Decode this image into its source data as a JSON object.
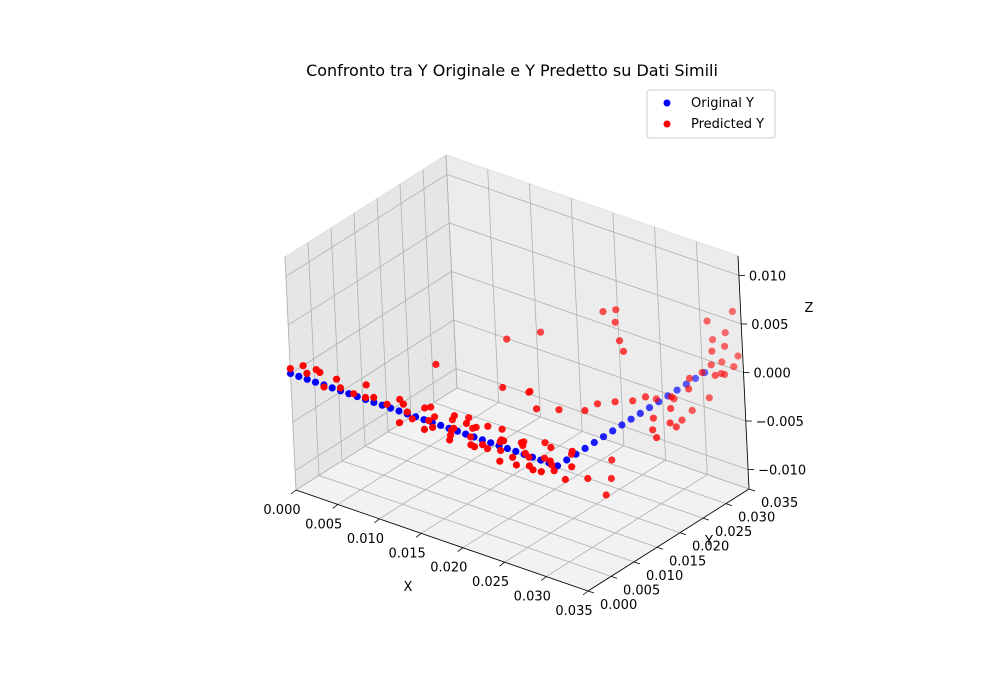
{
  "chart_data": {
    "type": "scatter",
    "projection": "3d",
    "title": "Confronto tra Y Originale e Y Predetto su Dati Simili",
    "xlabel": "X",
    "ylabel": "Y",
    "zlabel": "Z",
    "xlim": [
      0.0,
      0.035
    ],
    "ylim": [
      0.0,
      0.035
    ],
    "zlim": [
      -0.012,
      0.012
    ],
    "x_ticks": [
      "0.000",
      "0.005",
      "0.010",
      "0.015",
      "0.020",
      "0.025",
      "0.030",
      "0.035"
    ],
    "y_ticks": [
      "0.000",
      "0.005",
      "0.010",
      "0.015",
      "0.020",
      "0.025",
      "0.030",
      "0.035"
    ],
    "z_ticks": [
      "−0.010",
      "−0.005",
      "0.000",
      "0.005",
      "0.010"
    ],
    "grid": true,
    "legend_position": "top-right",
    "series": [
      {
        "name": "Original Y",
        "color": "#0000ff",
        "points": [
          [
            0.0,
            0.0,
            0.0
          ],
          [
            0.001,
            0.0,
            0.0
          ],
          [
            0.002,
            0.0,
            0.0
          ],
          [
            0.003,
            0.0,
            0.0
          ],
          [
            0.004,
            0.0,
            0.0
          ],
          [
            0.005,
            0.0,
            0.0
          ],
          [
            0.006,
            0.0,
            0.0
          ],
          [
            0.007,
            0.0,
            0.0
          ],
          [
            0.008,
            0.0,
            0.0
          ],
          [
            0.009,
            0.0,
            0.0
          ],
          [
            0.01,
            0.0,
            0.0
          ],
          [
            0.011,
            0.0,
            0.0
          ],
          [
            0.012,
            0.0,
            0.0
          ],
          [
            0.013,
            0.0,
            0.0
          ],
          [
            0.014,
            0.0,
            0.0
          ],
          [
            0.015,
            0.0,
            0.0
          ],
          [
            0.016,
            0.0,
            0.0
          ],
          [
            0.017,
            0.0,
            0.0
          ],
          [
            0.018,
            0.0,
            0.0
          ],
          [
            0.019,
            0.0,
            0.0
          ],
          [
            0.02,
            0.0,
            0.0
          ],
          [
            0.021,
            0.0,
            0.0
          ],
          [
            0.022,
            0.0,
            0.0
          ],
          [
            0.023,
            0.0,
            0.0
          ],
          [
            0.024,
            0.0,
            0.0
          ],
          [
            0.025,
            0.0,
            0.0
          ],
          [
            0.026,
            0.0,
            0.0
          ],
          [
            0.027,
            0.0,
            0.0
          ],
          [
            0.028,
            0.0,
            0.0
          ],
          [
            0.029,
            0.0,
            0.0
          ],
          [
            0.03,
            0.0,
            0.0
          ],
          [
            0.031,
            0.0,
            0.0
          ],
          [
            0.032,
            0.0,
            0.0
          ],
          [
            0.032,
            0.002,
            0.0
          ],
          [
            0.032,
            0.004,
            0.0
          ],
          [
            0.032,
            0.006,
            0.0
          ],
          [
            0.032,
            0.008,
            0.0
          ],
          [
            0.032,
            0.01,
            0.0
          ],
          [
            0.032,
            0.012,
            0.0
          ],
          [
            0.032,
            0.014,
            0.0
          ],
          [
            0.032,
            0.016,
            0.0
          ],
          [
            0.032,
            0.018,
            0.0
          ],
          [
            0.032,
            0.02,
            0.0
          ],
          [
            0.032,
            0.022,
            0.0
          ],
          [
            0.032,
            0.024,
            0.0
          ],
          [
            0.032,
            0.026,
            0.0
          ],
          [
            0.032,
            0.028,
            0.0
          ],
          [
            0.032,
            0.03,
            0.0
          ],
          [
            0.032,
            0.032,
            0.0
          ]
        ]
      },
      {
        "name": "Predicted Y",
        "color": "#ff0000",
        "points": [
          [
            0.0,
            0.0,
            0.0005
          ],
          [
            0.001,
            0.001,
            0.0008
          ],
          [
            0.002,
            0.0,
            0.0006
          ],
          [
            0.003,
            0.001,
            0.0007
          ],
          [
            0.002,
            0.002,
            0.0004
          ],
          [
            0.004,
            0.0,
            -0.0002
          ],
          [
            0.005,
            0.001,
            0.0006
          ],
          [
            0.006,
            0.0,
            0.0003
          ],
          [
            0.007,
            0.001,
            -0.0003
          ],
          [
            0.008,
            0.002,
            0.0006
          ],
          [
            0.009,
            0.0,
            0.0002
          ],
          [
            0.01,
            0.0,
            0.0005
          ],
          [
            0.011,
            0.001,
            -0.0002
          ],
          [
            0.012,
            0.002,
            0.0003
          ],
          [
            0.013,
            0.001,
            0.0004
          ],
          [
            0.014,
            0.0,
            0.0002
          ],
          [
            0.015,
            0.002,
            0.0003
          ],
          [
            0.016,
            0.001,
            -0.0004
          ],
          [
            0.017,
            0.0,
            -0.0005
          ],
          [
            0.018,
            0.003,
            0.0001
          ],
          [
            0.019,
            0.001,
            -0.0003
          ],
          [
            0.02,
            0.002,
            0.0002
          ],
          [
            0.021,
            0.001,
            -0.0006
          ],
          [
            0.022,
            0.003,
            0.0002
          ],
          [
            0.023,
            0.0,
            -0.0005
          ],
          [
            0.024,
            0.002,
            -0.0005
          ],
          [
            0.025,
            0.001,
            0.0002
          ],
          [
            0.026,
            0.003,
            -0.0003
          ],
          [
            0.027,
            0.002,
            -0.0008
          ],
          [
            0.028,
            0.001,
            -0.0006
          ],
          [
            0.029,
            0.004,
            -0.0002
          ],
          [
            0.03,
            0.002,
            -0.0007
          ],
          [
            0.031,
            0.005,
            -0.0003
          ],
          [
            0.032,
            0.003,
            -0.001
          ],
          [
            0.031,
            0.001,
            -0.0011
          ],
          [
            0.03,
            0.0,
            -0.0012
          ],
          [
            0.029,
            0.0,
            -0.0013
          ],
          [
            0.028,
            0.001,
            -0.0015
          ],
          [
            0.027,
            0.0,
            -0.0014
          ],
          [
            0.026,
            0.001,
            -0.0012
          ],
          [
            0.025,
            0.0,
            -0.0016
          ],
          [
            0.024,
            0.002,
            -0.0014
          ],
          [
            0.023,
            0.001,
            -0.0012
          ],
          [
            0.022,
            0.0,
            -0.001
          ],
          [
            0.021,
            0.001,
            -0.0014
          ],
          [
            0.019,
            0.0,
            -0.0012
          ],
          [
            0.018,
            0.002,
            -0.0016
          ],
          [
            0.016,
            0.0,
            -0.001
          ],
          [
            0.014,
            0.001,
            -0.0008
          ],
          [
            0.013,
            0.0,
            -0.0012
          ],
          [
            0.02,
            0.01,
            0.0015
          ],
          [
            0.022,
            0.012,
            0.001
          ],
          [
            0.024,
            0.01,
            0.0005
          ],
          [
            0.021,
            0.014,
            0.0002
          ],
          [
            0.025,
            0.013,
            -0.0002
          ],
          [
            0.027,
            0.015,
            -0.0003
          ],
          [
            0.028,
            0.016,
            0.0004
          ],
          [
            0.029,
            0.018,
            0.0003
          ],
          [
            0.03,
            0.02,
            0.0001
          ],
          [
            0.031,
            0.021,
            0.0005
          ],
          [
            0.033,
            0.019,
            -0.0005
          ],
          [
            0.034,
            0.017,
            -0.0008
          ],
          [
            0.035,
            0.016,
            -0.001
          ],
          [
            0.035,
            0.019,
            -0.0004
          ],
          [
            0.034,
            0.021,
            0.0002
          ],
          [
            0.033,
            0.023,
            0.0005
          ],
          [
            0.034,
            0.025,
            0.001
          ],
          [
            0.033,
            0.027,
            0.0012
          ],
          [
            0.034,
            0.028,
            0.0018
          ],
          [
            0.035,
            0.029,
            0.0015
          ],
          [
            0.035,
            0.031,
            0.001
          ],
          [
            0.034,
            0.03,
            0.002
          ],
          [
            0.033,
            0.032,
            0.0025
          ],
          [
            0.034,
            0.033,
            0.003
          ],
          [
            0.035,
            0.034,
            0.002
          ],
          [
            0.033,
            0.034,
            0.0008
          ],
          [
            0.034,
            0.032,
            0.0005
          ],
          [
            0.035,
            0.033,
            0.0012
          ],
          [
            0.032,
            0.034,
            0.0028
          ],
          [
            0.033,
            0.035,
            0.0035
          ],
          [
            0.034,
            0.035,
            0.006
          ],
          [
            0.032,
            0.033,
            0.005
          ],
          [
            0.033,
            0.031,
            -0.002
          ],
          [
            0.032,
            0.029,
            -0.003
          ],
          [
            0.031,
            0.027,
            -0.0015
          ],
          [
            0.03,
            0.025,
            -0.0012
          ],
          [
            0.028,
            0.022,
            0.004
          ],
          [
            0.027,
            0.023,
            0.0045
          ],
          [
            0.033,
            0.025,
            -0.0025
          ],
          [
            0.034,
            0.022,
            -0.002
          ],
          [
            0.03,
            0.015,
            -0.0045
          ],
          [
            0.031,
            0.013,
            -0.0055
          ],
          [
            0.032,
            0.01,
            -0.006
          ],
          [
            0.031,
            0.008,
            -0.004
          ],
          [
            0.03,
            0.005,
            -0.0035
          ],
          [
            0.028,
            0.01,
            -0.003
          ],
          [
            0.027,
            0.006,
            -0.0025
          ],
          [
            0.029,
            0.004,
            -0.002
          ],
          [
            0.026,
            0.008,
            -0.0018
          ],
          [
            0.025,
            0.005,
            -0.0015
          ],
          [
            0.024,
            0.007,
            -0.002
          ],
          [
            0.023,
            0.004,
            -0.0012
          ],
          [
            0.022,
            0.006,
            -0.001
          ],
          [
            0.02,
            0.004,
            -0.0008
          ],
          [
            0.019,
            0.005,
            -0.0015
          ],
          [
            0.018,
            0.006,
            -0.001
          ],
          [
            0.017,
            0.004,
            -0.002
          ],
          [
            0.016,
            0.006,
            -0.0018
          ],
          [
            0.015,
            0.004,
            -0.0012
          ],
          [
            0.014,
            0.005,
            -0.0008
          ],
          [
            0.024,
            0.025,
            0.006
          ],
          [
            0.025,
            0.026,
            0.0062
          ],
          [
            0.026,
            0.024,
            0.0058
          ],
          [
            0.015,
            0.02,
            0.002
          ],
          [
            0.018,
            0.022,
            0.003
          ],
          [
            0.012,
            0.01,
            0.0015
          ]
        ]
      }
    ]
  }
}
